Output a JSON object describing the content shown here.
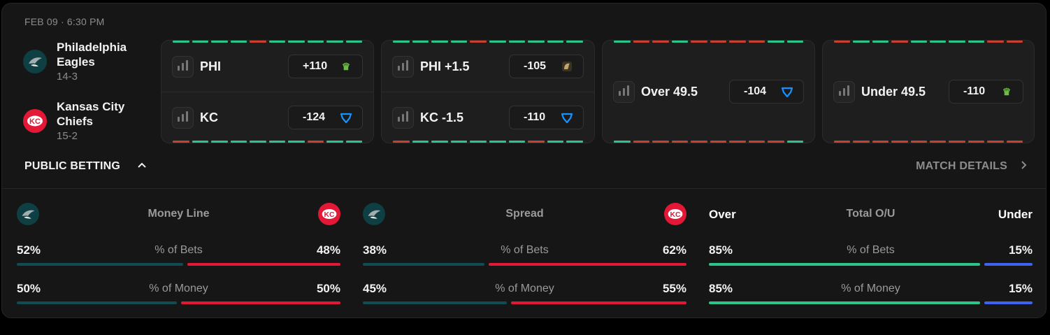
{
  "game": {
    "datetime": "FEB 09 · 6:30 PM"
  },
  "teams": [
    {
      "name": "Philadelphia Eagles",
      "record": "14-3",
      "logo_icon": "eagles-logo",
      "color": "#004C54"
    },
    {
      "name": "Kansas City Chiefs",
      "record": "15-2",
      "logo_icon": "chiefs-logo",
      "color": "#E31837"
    }
  ],
  "markets": [
    {
      "rows": [
        {
          "label": "PHI",
          "price": "+110",
          "book_icon": "draftkings-icon"
        },
        {
          "label": "KC",
          "price": "-124",
          "book_icon": "fanduel-icon"
        }
      ]
    },
    {
      "rows": [
        {
          "label": "PHI +1.5",
          "price": "-105",
          "book_icon": "betmgm-icon"
        },
        {
          "label": "KC -1.5",
          "price": "-110",
          "book_icon": "fanduel-icon"
        }
      ]
    },
    {
      "rows": [
        {
          "label": "Over 49.5",
          "price": "-104",
          "book_icon": "fanduel-icon"
        }
      ]
    },
    {
      "rows": [
        {
          "label": "Under 49.5",
          "price": "-110",
          "book_icon": "draftkings-icon"
        }
      ]
    }
  ],
  "public_betting": {
    "title": "PUBLIC BETTING",
    "match_details": "MATCH DETAILS",
    "blocks": [
      {
        "title": "Money Line",
        "bets_label": "% of Bets",
        "money_label": "% of Money",
        "bets": {
          "left": "52%",
          "right": "48%",
          "left_share": 0.52
        },
        "money": {
          "left": "50%",
          "right": "50%",
          "left_share": 0.5
        }
      },
      {
        "title": "Spread",
        "bets_label": "% of Bets",
        "money_label": "% of Money",
        "bets": {
          "left": "38%",
          "right": "62%",
          "left_share": 0.38
        },
        "money": {
          "left": "45%",
          "right": "55%",
          "left_share": 0.45
        }
      },
      {
        "title": "Total O/U",
        "left_label": "Over",
        "right_label": "Under",
        "bets_label": "% of Bets",
        "money_label": "% of Money",
        "bets": {
          "left": "85%",
          "right": "15%",
          "left_share": 0.85
        },
        "money": {
          "left": "85%",
          "right": "15%",
          "left_share": 0.85
        }
      }
    ]
  },
  "colors": {
    "green": "#2bc48a",
    "red": "#c8402f",
    "teal": "#0f4d52",
    "chiefs_red": "#e31837",
    "blue": "#3e63f0"
  }
}
